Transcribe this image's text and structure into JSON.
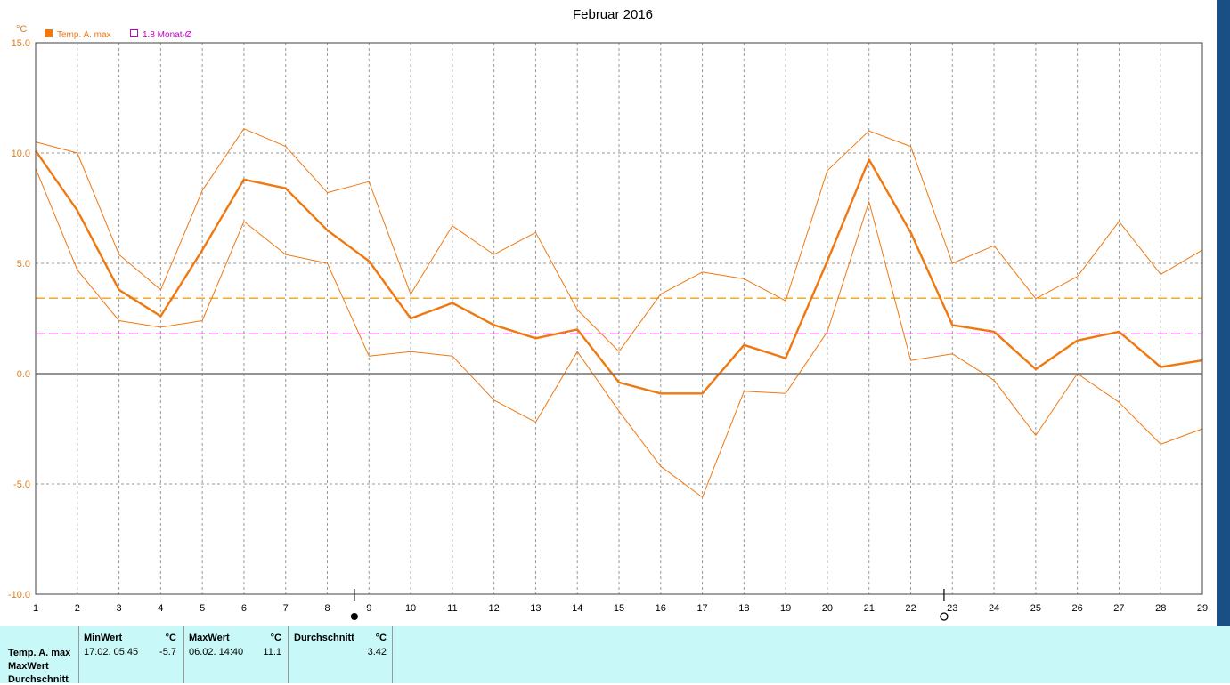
{
  "chart_data": {
    "type": "line",
    "title": "Februar 2016",
    "ylabel": "°C",
    "ylim": [
      -10,
      15
    ],
    "yticks": [
      "15.0",
      "10.0",
      "5.0",
      "0.0",
      "-5.0",
      "-10.0"
    ],
    "x": [
      1,
      2,
      3,
      4,
      5,
      6,
      7,
      8,
      9,
      10,
      11,
      12,
      13,
      14,
      15,
      16,
      17,
      18,
      19,
      20,
      21,
      22,
      23,
      24,
      25,
      26,
      27,
      28,
      29
    ],
    "grid": true,
    "legend": [
      {
        "label": "Temp. A. max",
        "color": "#f07810",
        "filled": true
      },
      {
        "label": "1.8 Monat-Ø",
        "color": "#c000c0",
        "filled": false
      }
    ],
    "series": [
      {
        "name": "Temp. A. max",
        "color": "#f07810",
        "width": 2.4,
        "values": [
          10.1,
          7.4,
          3.8,
          2.6,
          5.6,
          8.8,
          8.4,
          6.5,
          5.1,
          2.5,
          3.2,
          2.2,
          1.6,
          2.0,
          -0.4,
          -0.9,
          -0.9,
          1.3,
          0.7,
          5.1,
          9.7,
          6.4,
          2.2,
          1.9,
          0.2,
          1.5,
          1.9,
          0.3,
          0.6
        ]
      },
      {
        "color": "#f07810",
        "width": 1,
        "values": [
          10.5,
          10.0,
          5.4,
          3.8,
          8.3,
          11.1,
          10.3,
          8.2,
          8.7,
          3.6,
          6.7,
          5.4,
          6.4,
          2.9,
          1.0,
          3.6,
          4.6,
          4.3,
          3.3,
          9.2,
          11.0,
          10.3,
          5.0,
          5.8,
          3.4,
          4.4,
          6.9,
          4.5,
          5.6
        ]
      },
      {
        "color": "#f07810",
        "width": 1,
        "values": [
          9.3,
          4.7,
          2.4,
          2.1,
          2.4,
          6.9,
          5.4,
          5.0,
          0.8,
          1.0,
          0.8,
          -1.2,
          -2.2,
          1.0,
          -1.7,
          -4.2,
          -5.6,
          -0.8,
          -0.9,
          1.9,
          7.8,
          0.6,
          0.9,
          -0.3,
          -2.8,
          0.0,
          -1.3,
          -3.2,
          -2.5
        ]
      }
    ],
    "reference_lines": [
      {
        "value": 3.42,
        "color": "#f0a020",
        "style": "dashed"
      },
      {
        "value": 1.8,
        "color": "#b020b0",
        "style": "dashed"
      }
    ],
    "moon_markers": [
      {
        "x": 8.65,
        "phase": "new-moon"
      },
      {
        "x": 22.8,
        "phase": "full-moon"
      }
    ]
  },
  "stats": {
    "row_labels": [
      "Temp. A. max",
      "MaxWert",
      "Durchschnitt"
    ],
    "unit": "°C",
    "min": {
      "header": "MinWert",
      "date": "17.02.  05:45",
      "value": "-5.7"
    },
    "max": {
      "header": "MaxWert",
      "date": "06.02.  14:40",
      "value": "11.1"
    },
    "avg": {
      "header": "Durchschnitt",
      "value": "3.42"
    }
  }
}
